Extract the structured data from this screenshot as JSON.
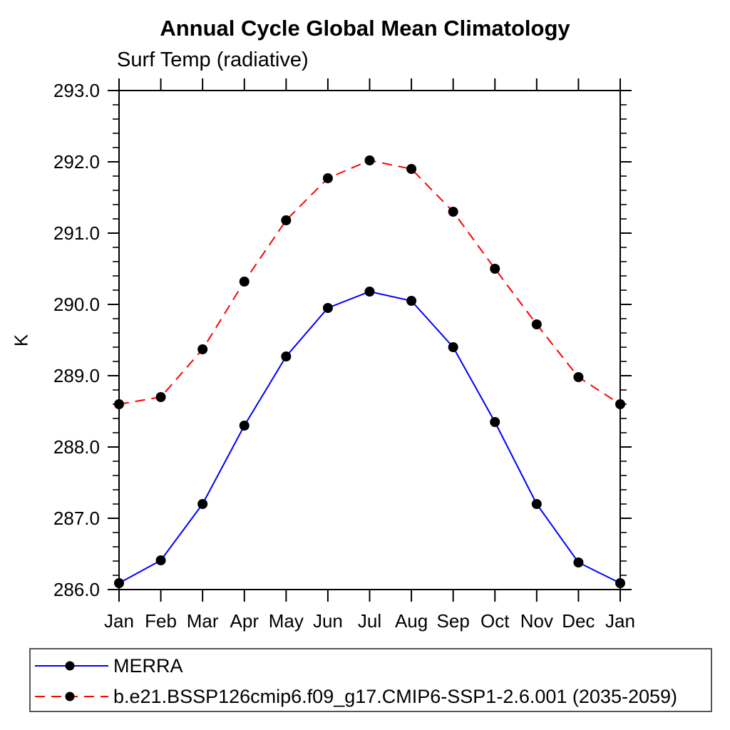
{
  "chart_data": {
    "type": "line",
    "title": "Annual Cycle Global Mean Climatology",
    "subtitle": "Surf Temp (radiative)",
    "ylabel": "K",
    "x_labels": [
      "Jan",
      "Feb",
      "Mar",
      "Apr",
      "May",
      "Jun",
      "Jul",
      "Aug",
      "Sep",
      "Oct",
      "Nov",
      "Dec",
      "Jan"
    ],
    "ylim": [
      286.0,
      293.0
    ],
    "y_tick_labels": [
      "286.0",
      "287.0",
      "288.0",
      "289.0",
      "290.0",
      "291.0",
      "292.0",
      "293.0"
    ],
    "y_minor_step": 0.2,
    "grid": "off",
    "legend_position": "bottom",
    "axis_color": "#000000",
    "marker_color": "#000000",
    "series": [
      {
        "name": "MERRA",
        "color": "#0000ff",
        "line_style": "solid",
        "marker": "filled-circle",
        "values": [
          286.09,
          286.41,
          287.2,
          288.3,
          289.27,
          289.95,
          290.18,
          290.05,
          289.4,
          288.35,
          287.2,
          286.38,
          286.09
        ]
      },
      {
        "name": "b.e21.BSSP126cmip6.f09_g17.CMIP6-SSP1-2.6.001 (2035-2059)",
        "color": "#ff0000",
        "line_style": "dashed",
        "marker": "filled-circle",
        "values": [
          288.6,
          288.7,
          289.37,
          290.32,
          291.18,
          291.77,
          292.02,
          291.9,
          291.3,
          290.5,
          289.72,
          288.98,
          288.6
        ]
      }
    ]
  }
}
